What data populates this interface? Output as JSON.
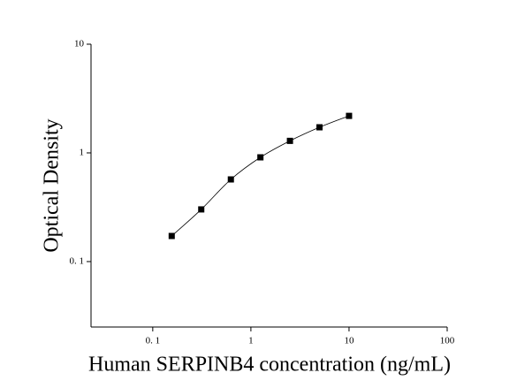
{
  "chart_data": {
    "type": "scatter",
    "x_label": "Human SERPINB4 concentration (ng/mL)",
    "y_label": "Optical Density",
    "x": [
      0.156,
      0.312,
      0.625,
      1.25,
      2.5,
      5,
      10
    ],
    "series": [
      {
        "color": "#000000",
        "values": [
          0.172,
          0.302,
          0.57,
          0.91,
          1.29,
          1.72,
          2.19
        ]
      }
    ],
    "x_log": true,
    "y_log": true,
    "xlim": [
      0.0235,
      100
    ],
    "ylim": [
      0.025,
      10
    ],
    "xticks": [
      {
        "value": 0.1,
        "label": "0. 1"
      },
      1,
      10,
      100
    ],
    "yticks": [
      {
        "value": 0.1,
        "label": "0. 1"
      },
      1,
      10
    ]
  }
}
